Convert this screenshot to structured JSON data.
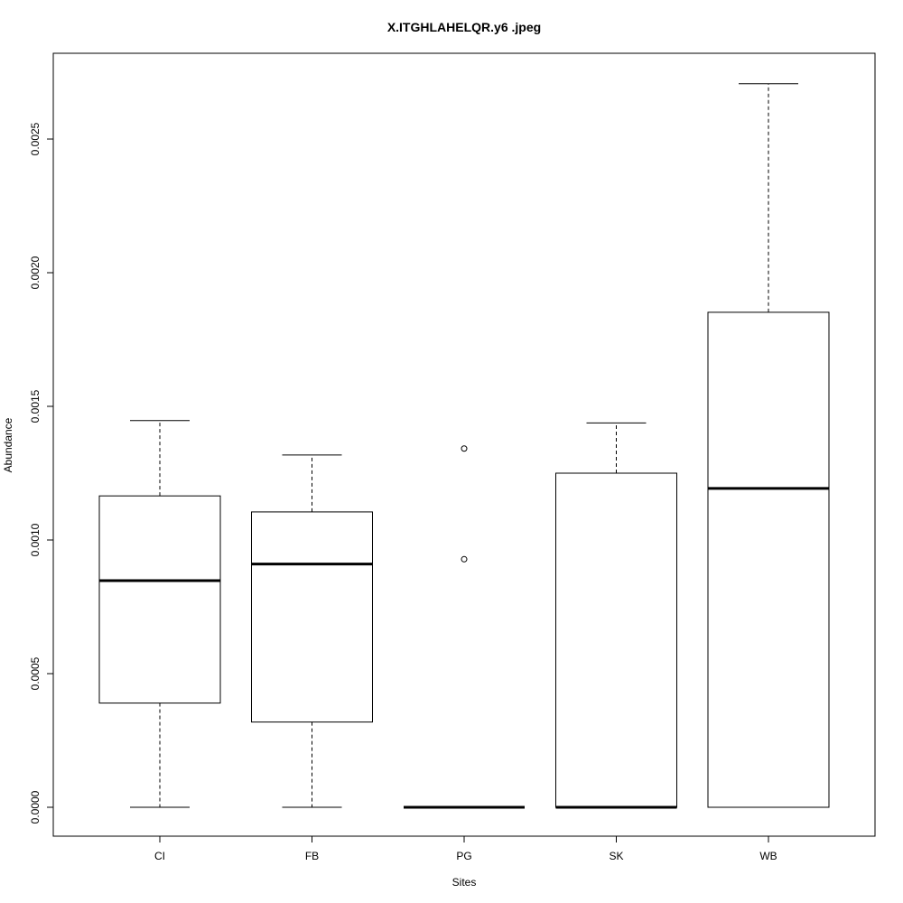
{
  "chart_data": {
    "type": "box",
    "title": "X.ITGHLAHELQR.y6 .jpeg",
    "xlabel": "Sites",
    "ylabel": "Abundance",
    "ylim": [
      -0.0001,
      0.00282
    ],
    "y_ticks": [
      "0.0000",
      "0.0005",
      "0.0010",
      "0.0015",
      "0.0020",
      "0.0025"
    ],
    "y_tick_values": [
      0,
      0.0005,
      0.001,
      0.0015,
      0.002,
      0.0025
    ],
    "grid": false,
    "categories": [
      "CI",
      "FB",
      "PG",
      "SK",
      "WB"
    ],
    "boxes": [
      {
        "category": "CI",
        "whisker_low": 0.0,
        "q1": 0.00039,
        "median": 0.000848,
        "q3": 0.001165,
        "whisker_high": 0.001447,
        "outliers": []
      },
      {
        "category": "FB",
        "whisker_low": 0.0,
        "q1": 0.000319,
        "median": 0.00091,
        "q3": 0.001105,
        "whisker_high": 0.001318,
        "outliers": []
      },
      {
        "category": "PG",
        "whisker_low": 0.0,
        "q1": 0.0,
        "median": 0.0,
        "q3": 0.0,
        "whisker_high": 0.0,
        "outliers": [
          0.001342,
          0.000928
        ]
      },
      {
        "category": "SK",
        "whisker_low": 0.0,
        "q1": 0.0,
        "median": 0.0,
        "q3": 0.00125,
        "whisker_high": 0.001438,
        "outliers": []
      },
      {
        "category": "WB",
        "whisker_low": 0.0,
        "q1": 0.0,
        "median": 0.001193,
        "q3": 0.001852,
        "whisker_high": 0.002707,
        "outliers": []
      }
    ]
  }
}
